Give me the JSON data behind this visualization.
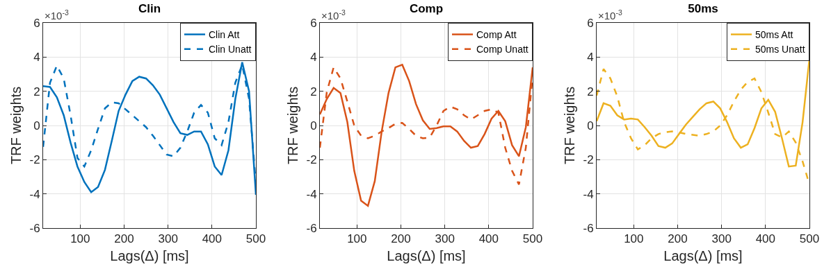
{
  "chart_data": [
    {
      "type": "line",
      "title": "Clin",
      "xlabel": "Lags(Δ) [ms]",
      "ylabel": "TRF weights",
      "annotations": [
        "×10$^{-3}$"
      ],
      "x": [
        15.6,
        31.3,
        46.9,
        62.5,
        78.1,
        93.8,
        109.4,
        125,
        140.6,
        156.3,
        171.9,
        187.5,
        203.1,
        218.8,
        234.4,
        250,
        265.6,
        281.3,
        296.9,
        312.5,
        328.1,
        343.8,
        359.4,
        375,
        390.6,
        406.3,
        421.9,
        437.5,
        453.1,
        468.8,
        484.4,
        500
      ],
      "xlim": [
        15.6,
        500
      ],
      "xticks": [
        100,
        200,
        300,
        400,
        500
      ],
      "ylim": [
        -6,
        6
      ],
      "yticks": [
        -6,
        -4,
        -2,
        0,
        2,
        4,
        6
      ],
      "grid": true,
      "legend": "top right",
      "series": [
        {
          "name": "Clin Att",
          "color": "#0072bd",
          "line_style": "solid",
          "values": [
            2.3,
            2.25,
            1.65,
            0.6,
            -1.0,
            -2.4,
            -3.3,
            -3.9,
            -3.6,
            -2.6,
            -0.9,
            0.85,
            1.8,
            2.6,
            2.85,
            2.75,
            2.35,
            1.8,
            1.0,
            0.2,
            -0.45,
            -0.55,
            -0.35,
            -0.35,
            -1.1,
            -2.4,
            -2.9,
            -1.45,
            1.55,
            3.7,
            2.0,
            -4.05
          ]
        },
        {
          "name": "Clin Unatt",
          "color": "#0072bd",
          "line_style": "dashed",
          "values": [
            -1.25,
            2.5,
            3.5,
            2.75,
            0.6,
            -1.9,
            -2.4,
            -1.45,
            -0.2,
            1.0,
            1.35,
            1.3,
            0.95,
            0.6,
            0.25,
            -0.1,
            -0.6,
            -1.15,
            -1.7,
            -1.8,
            -1.3,
            -0.35,
            0.75,
            1.2,
            0.75,
            -0.75,
            -1.15,
            0.2,
            2.5,
            3.55,
            1.55,
            -3.45
          ]
        }
      ]
    },
    {
      "type": "line",
      "title": "Comp",
      "xlabel": "Lags(Δ) [ms]",
      "ylabel": "TRF weights",
      "annotations": [
        "×10$^{-3}$"
      ],
      "x": [
        15.6,
        31.3,
        46.9,
        62.5,
        78.1,
        93.8,
        109.4,
        125,
        140.6,
        156.3,
        171.9,
        187.5,
        203.1,
        218.8,
        234.4,
        250,
        265.6,
        281.3,
        296.9,
        312.5,
        328.1,
        343.8,
        359.4,
        375,
        390.6,
        406.3,
        421.9,
        437.5,
        453.1,
        468.8,
        484.4,
        500
      ],
      "xlim": [
        15.6,
        500
      ],
      "xticks": [
        100,
        200,
        300,
        400,
        500
      ],
      "ylim": [
        -6,
        6
      ],
      "yticks": [
        -6,
        -4,
        -2,
        0,
        2,
        4,
        6
      ],
      "grid": true,
      "legend": "top right",
      "series": [
        {
          "name": "Comp Att",
          "color": "#d95319",
          "line_style": "solid",
          "values": [
            0.65,
            1.55,
            2.2,
            1.9,
            0.2,
            -2.65,
            -4.4,
            -4.7,
            -3.25,
            -0.35,
            1.9,
            3.4,
            3.55,
            2.6,
            1.25,
            0.3,
            -0.2,
            -0.15,
            -0.05,
            -0.05,
            -0.35,
            -0.9,
            -1.3,
            -1.2,
            -0.5,
            0.4,
            0.85,
            0.25,
            -1.15,
            -1.8,
            -0.1,
            3.4
          ]
        },
        {
          "name": "Comp Unatt",
          "color": "#d95319",
          "line_style": "dashed",
          "values": [
            -1.3,
            1.95,
            3.4,
            2.75,
            1.4,
            0,
            -0.6,
            -0.75,
            -0.6,
            -0.35,
            -0.15,
            0.1,
            0.15,
            -0.2,
            -0.6,
            -0.75,
            -0.7,
            0,
            0.85,
            1.1,
            0.95,
            0.6,
            0.35,
            0.6,
            0.85,
            0.95,
            0.75,
            -1.3,
            -2.65,
            -3.45,
            -1.3,
            2.9
          ]
        }
      ]
    },
    {
      "type": "line",
      "title": "50ms",
      "xlabel": "Lags(Δ) [ms]",
      "ylabel": "TRF weights",
      "annotations": [
        "×10$^{-3}$"
      ],
      "x": [
        15.6,
        31.3,
        46.9,
        62.5,
        78.1,
        93.8,
        109.4,
        125,
        140.6,
        156.3,
        171.9,
        187.5,
        203.1,
        218.8,
        234.4,
        250,
        265.6,
        281.3,
        296.9,
        312.5,
        328.1,
        343.8,
        359.4,
        375,
        390.6,
        406.3,
        421.9,
        437.5,
        453.1,
        468.8,
        484.4,
        500
      ],
      "xlim": [
        15.6,
        500
      ],
      "xticks": [
        100,
        200,
        300,
        400,
        500
      ],
      "ylim": [
        -6,
        6
      ],
      "yticks": [
        -6,
        -4,
        -2,
        0,
        2,
        4,
        6
      ],
      "grid": true,
      "legend": "top right",
      "series": [
        {
          "name": "50ms Att",
          "color": "#edb120",
          "line_style": "solid",
          "values": [
            0.25,
            1.3,
            1.15,
            0.6,
            0.35,
            0.4,
            0.35,
            -0.1,
            -0.6,
            -1.2,
            -1.3,
            -1.05,
            -0.5,
            0.05,
            0.5,
            0.95,
            1.3,
            1.4,
            1.0,
            0.2,
            -0.75,
            -1.3,
            -1.1,
            -0.15,
            1.0,
            1.5,
            0.8,
            -0.75,
            -2.4,
            -2.35,
            0.2,
            3.9
          ]
        },
        {
          "name": "50ms Unatt",
          "color": "#edb120",
          "line_style": "dashed",
          "values": [
            1.75,
            3.3,
            2.75,
            1.7,
            0.2,
            -0.75,
            -1.4,
            -1.15,
            -0.75,
            -0.5,
            -0.4,
            -0.35,
            -0.4,
            -0.5,
            -0.55,
            -0.6,
            -0.5,
            -0.35,
            0,
            0.6,
            1.4,
            2.1,
            2.55,
            2.75,
            1.95,
            0.75,
            -0.5,
            -0.7,
            -0.35,
            -1.0,
            -2.1,
            -3.45
          ]
        }
      ]
    }
  ]
}
